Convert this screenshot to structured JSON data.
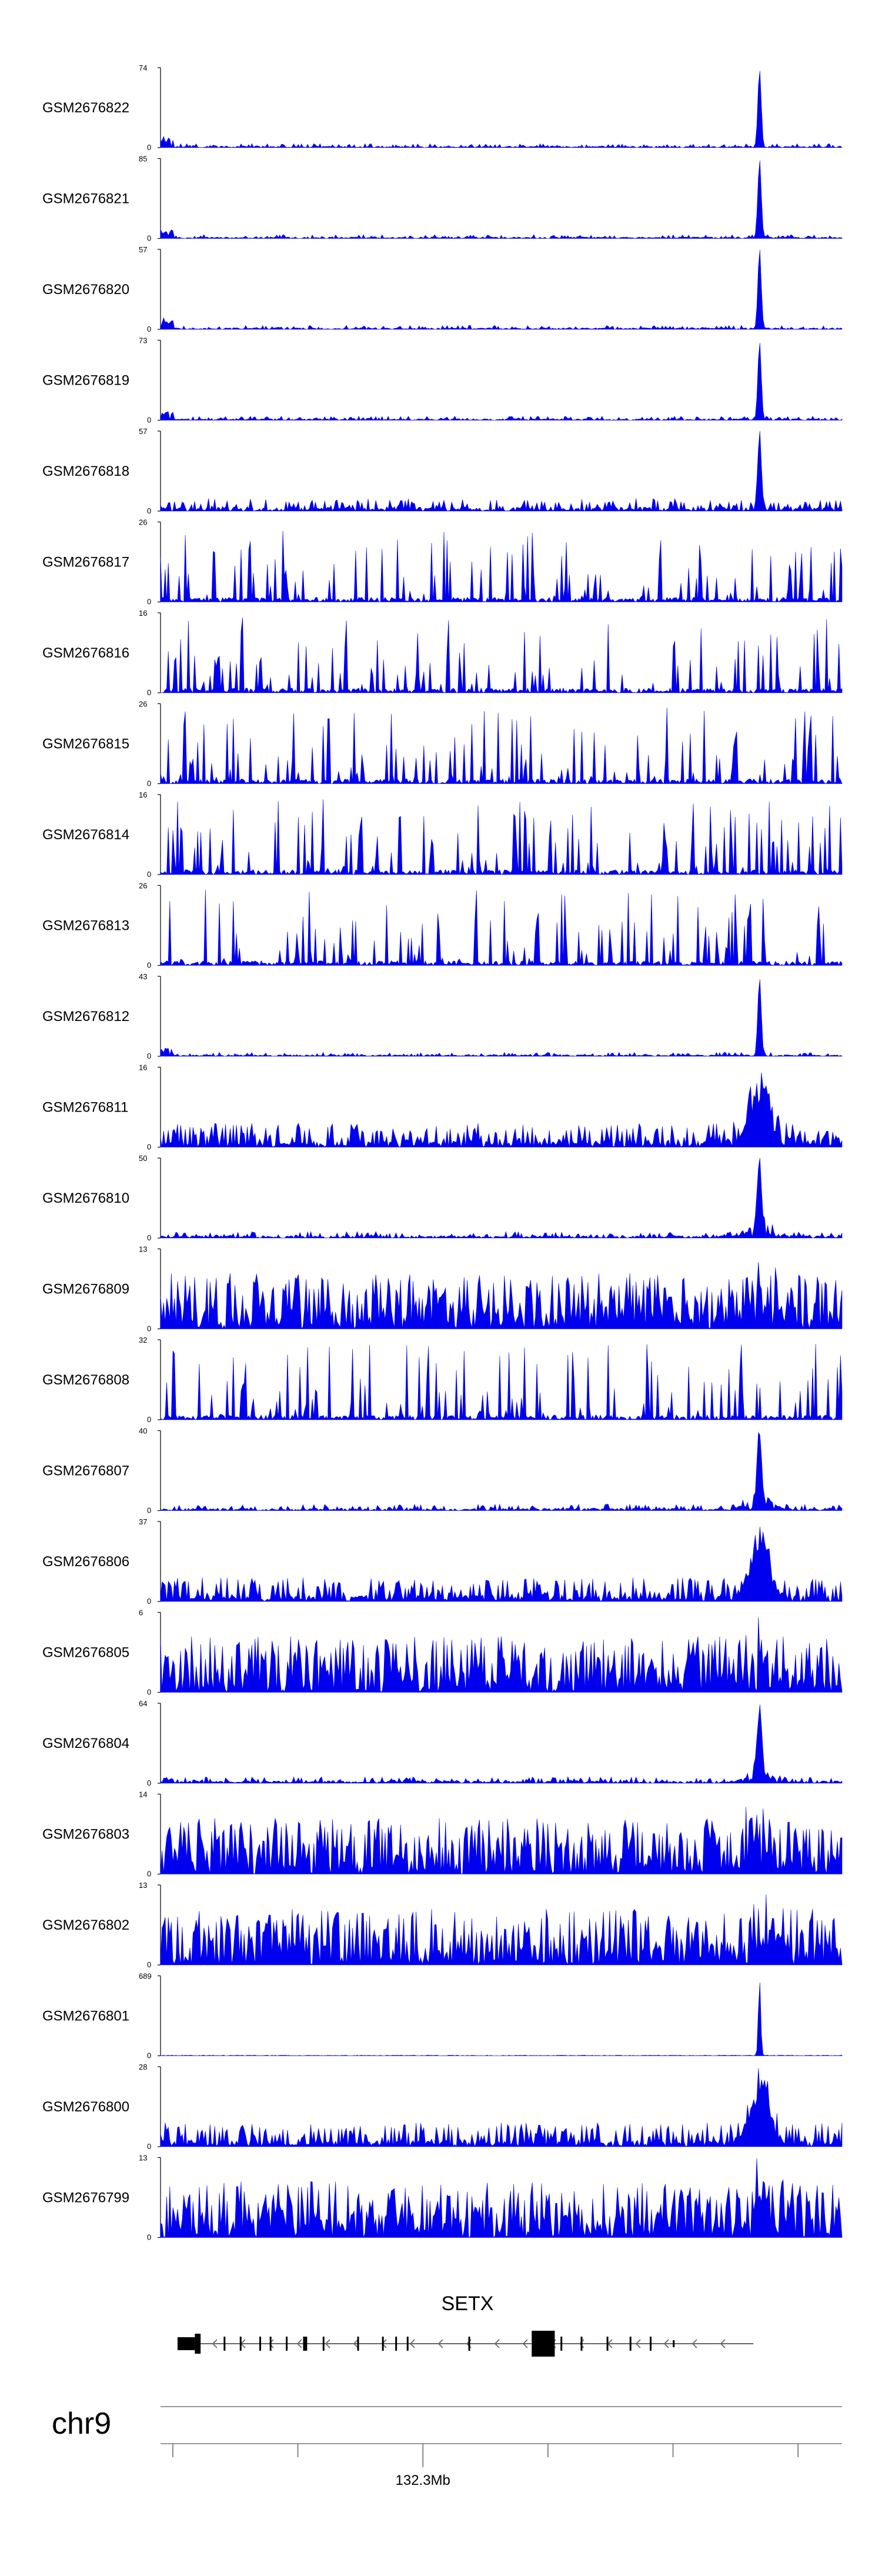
{
  "chart_data": {
    "type": "area",
    "chromosome": "chr9",
    "series": [
      {
        "name": "GSM2676822",
        "ymax": "74",
        "ymin": "0",
        "profile": "peak"
      },
      {
        "name": "GSM2676821",
        "ymax": "85",
        "ymin": "0",
        "profile": "peak"
      },
      {
        "name": "GSM2676820",
        "ymax": "57",
        "ymin": "0",
        "profile": "peak"
      },
      {
        "name": "GSM2676819",
        "ymax": "73",
        "ymin": "0",
        "profile": "peak"
      },
      {
        "name": "GSM2676818",
        "ymax": "57",
        "ymin": "0",
        "profile": "peak_noisy"
      },
      {
        "name": "GSM2676817",
        "ymax": "26",
        "ymin": "0",
        "profile": "noise_sparse"
      },
      {
        "name": "GSM2676816",
        "ymax": "16",
        "ymin": "0",
        "profile": "noise_sparse"
      },
      {
        "name": "GSM2676815",
        "ymax": "26",
        "ymin": "0",
        "profile": "noise_sparse"
      },
      {
        "name": "GSM2676814",
        "ymax": "16",
        "ymin": "0",
        "profile": "noise_sparse"
      },
      {
        "name": "GSM2676813",
        "ymax": "26",
        "ymin": "0",
        "profile": "noise_sparse"
      },
      {
        "name": "GSM2676812",
        "ymax": "43",
        "ymin": "0",
        "profile": "peak"
      },
      {
        "name": "GSM2676811",
        "ymax": "16",
        "ymin": "0",
        "profile": "noise_broad"
      },
      {
        "name": "GSM2676810",
        "ymax": "50",
        "ymin": "0",
        "profile": "peak_broad"
      },
      {
        "name": "GSM2676809",
        "ymax": "13",
        "ymin": "0",
        "profile": "noise_dense"
      },
      {
        "name": "GSM2676808",
        "ymax": "32",
        "ymin": "0",
        "profile": "noise_sparse"
      },
      {
        "name": "GSM2676807",
        "ymax": "40",
        "ymin": "0",
        "profile": "peak_broad"
      },
      {
        "name": "GSM2676806",
        "ymax": "37",
        "ymin": "0",
        "profile": "noise_broad"
      },
      {
        "name": "GSM2676805",
        "ymax": "6",
        "ymin": "0",
        "profile": "noise_dense"
      },
      {
        "name": "GSM2676804",
        "ymax": "64",
        "ymin": "0",
        "profile": "peak_broad"
      },
      {
        "name": "GSM2676803",
        "ymax": "14",
        "ymin": "0",
        "profile": "noise_dense"
      },
      {
        "name": "GSM2676802",
        "ymax": "13",
        "ymin": "0",
        "profile": "noise_dense"
      },
      {
        "name": "GSM2676801",
        "ymax": "689",
        "ymin": "0",
        "profile": "peak_sharp"
      },
      {
        "name": "GSM2676800",
        "ymax": "28",
        "ymin": "0",
        "profile": "noise_broad"
      },
      {
        "name": "GSM2676799",
        "ymax": "13",
        "ymin": "0",
        "profile": "noise_dense"
      }
    ],
    "gene": {
      "name": "SETX",
      "strand": "-",
      "start_fraction": 0.025,
      "end_fraction": 0.87
    },
    "x_axis": {
      "tick_label": "132.3Mb",
      "labeled_tick_fraction": 0.385,
      "tick_count": 6
    },
    "colors": {
      "signal": "#0000ee",
      "axis": "#000000",
      "axis_line": "#999999"
    }
  }
}
